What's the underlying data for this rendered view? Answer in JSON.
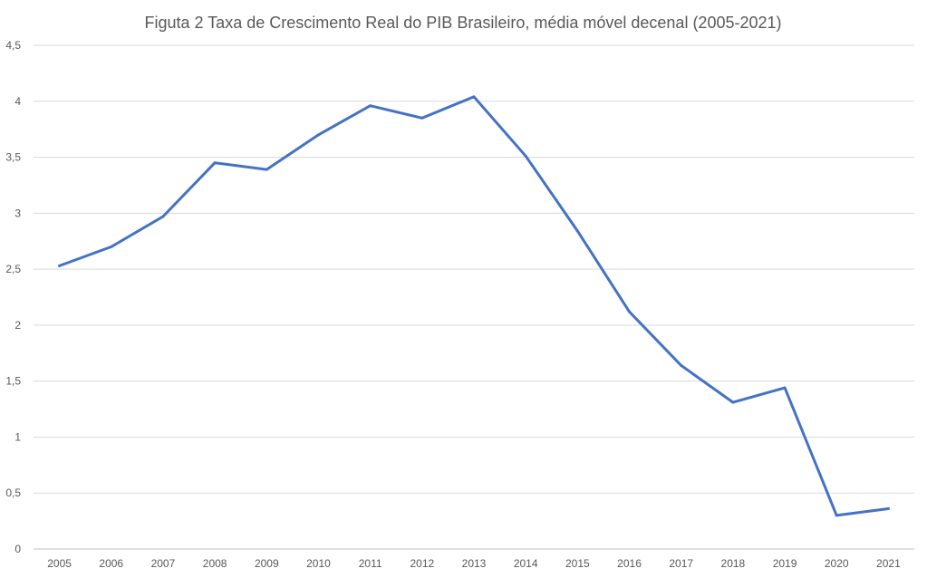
{
  "chart_data": {
    "type": "line",
    "title": "Figuta 2 Taxa de Crescimento Real do PIB Brasileiro, média móvel decenal (2005-2021)",
    "xlabel": "",
    "ylabel": "",
    "categories": [
      "2005",
      "2006",
      "2007",
      "2008",
      "2009",
      "2010",
      "2011",
      "2012",
      "2013",
      "2014",
      "2015",
      "2016",
      "2017",
      "2018",
      "2019",
      "2020",
      "2021"
    ],
    "series": [
      {
        "color": "#4472c4",
        "values": [
          2.53,
          2.7,
          2.97,
          3.45,
          3.39,
          3.7,
          3.96,
          3.85,
          4.04,
          3.51,
          2.84,
          2.12,
          1.64,
          1.31,
          1.44,
          0.3,
          0.36
        ]
      }
    ],
    "ylim": [
      0,
      4.5
    ],
    "yticks": [
      "0",
      "0,5",
      "1",
      "1,5",
      "2",
      "2,5",
      "3",
      "3,5",
      "4",
      "4,5"
    ],
    "grid": true,
    "legend": "none"
  }
}
